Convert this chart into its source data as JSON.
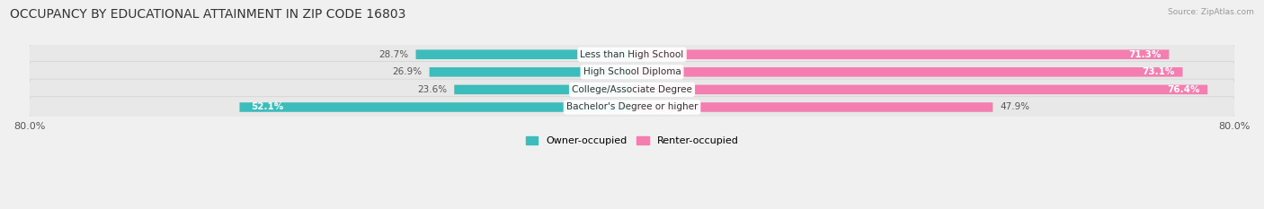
{
  "title": "OCCUPANCY BY EDUCATIONAL ATTAINMENT IN ZIP CODE 16803",
  "source": "Source: ZipAtlas.com",
  "categories": [
    "Less than High School",
    "High School Diploma",
    "College/Associate Degree",
    "Bachelor's Degree or higher"
  ],
  "owner_values": [
    28.7,
    26.9,
    23.6,
    52.1
  ],
  "renter_values": [
    71.3,
    73.1,
    76.4,
    47.9
  ],
  "owner_color": "#3DBCBC",
  "renter_color": "#F47EB0",
  "bg_color": "#f0f0f0",
  "bar_bg_color": "#e0e0e0",
  "x_left_label": "80.0%",
  "x_right_label": "80.0%",
  "legend_owner": "Owner-occupied",
  "legend_renter": "Renter-occupied",
  "title_fontsize": 10,
  "label_fontsize": 7.5,
  "value_fontsize": 7.5,
  "xlim": 80.0
}
